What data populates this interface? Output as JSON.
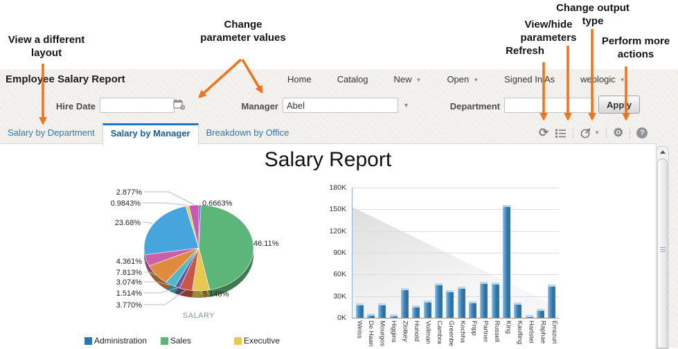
{
  "annotations": {
    "view_layout": "View a different layout",
    "change_params": "Change parameter values",
    "refresh": "Refresh",
    "view_hide_params": "View/hide parameters",
    "change_output": "Change output type",
    "more_actions": "Perform more actions",
    "arrow_color": "#f0741e"
  },
  "header": {
    "title": "Employee Salary Report",
    "menu": [
      {
        "label": "Home",
        "caret": false,
        "static": false
      },
      {
        "label": "Catalog",
        "caret": false,
        "static": false
      },
      {
        "label": "New",
        "caret": true,
        "static": false
      },
      {
        "label": "Open",
        "caret": true,
        "static": false
      },
      {
        "label": "Signed In As",
        "caret": false,
        "static": true
      },
      {
        "label": "weblogic",
        "caret": true,
        "static": false
      }
    ]
  },
  "parameters": {
    "fields": [
      {
        "label": "Hire Date",
        "value": "",
        "icon": "calendar-icon"
      },
      {
        "label": "Manager",
        "value": "Abel",
        "icon": "dropdown-caret"
      },
      {
        "label": "Department",
        "value": "",
        "icon": null
      }
    ],
    "apply_label": "Apply"
  },
  "tabs": [
    {
      "label": "Salary by Department",
      "active": false
    },
    {
      "label": "Salary by Manager",
      "active": true
    },
    {
      "label": "Breakdown by Office",
      "active": false
    }
  ],
  "toolbar": {
    "icons": [
      {
        "name": "refresh-icon"
      },
      {
        "name": "parameters-icon"
      },
      {
        "name": "output-type-icon",
        "caret": true
      },
      {
        "name": "gear-icon"
      },
      {
        "name": "help-icon",
        "glyph": "?"
      }
    ],
    "active_tab_border": "#1878c8"
  },
  "report": {
    "title": "Salary Report"
  },
  "chart_data": [
    {
      "type": "pie",
      "title": "SALARY",
      "slices": [
        {
          "label": "0.6663%",
          "value": 0.6663,
          "color": "#4d7cc1"
        },
        {
          "label": "46.11%",
          "value": 46.11,
          "color": "#5cb579"
        },
        {
          "label": "5.148%",
          "value": 5.148,
          "color": "#e9c753"
        },
        {
          "label": "3.770%",
          "value": 3.77,
          "color": "#cb5547"
        },
        {
          "label": "1.514%",
          "value": 1.514,
          "color": "#6b58a8"
        },
        {
          "label": "3.074%",
          "value": 3.074,
          "color": "#4fb9c9"
        },
        {
          "label": "7.813%",
          "value": 7.813,
          "color": "#e08a3e"
        },
        {
          "label": "4.361%",
          "value": 4.361,
          "color": "#cd5fa9"
        },
        {
          "label": "23.68%",
          "value": 23.68,
          "color": "#47a5dd"
        },
        {
          "label": "0.9843%",
          "value": 0.9843,
          "color": "#ded74f"
        },
        {
          "label": "2.877%",
          "value": 2.877,
          "color": "#c45ab8"
        }
      ],
      "legend": [
        {
          "label": "Administration",
          "color": "#2e75b5"
        },
        {
          "label": "Sales",
          "color": "#5cb579"
        },
        {
          "label": "Executive",
          "color": "#e9c753"
        }
      ],
      "legend_position": "bottom"
    },
    {
      "type": "bar",
      "categories": [
        "Weiss",
        "De Haan",
        "Mourgos",
        "Higgins",
        "Zlotkey",
        "Hunold",
        "Vollman",
        "Cambra",
        "Greenbe",
        "Kochha",
        "Fripp",
        "Partner",
        "Russell",
        "King",
        "Kaufling",
        "Hartstei",
        "Raphae",
        "Errazuri"
      ],
      "values": [
        20,
        6,
        20,
        5,
        41,
        17,
        24,
        48,
        38,
        43,
        23,
        50,
        49,
        156,
        21,
        4,
        12,
        46
      ],
      "unit": "K",
      "ylim": [
        0,
        180
      ],
      "yticks": [
        "0K",
        "30K",
        "60K",
        "90K",
        "120K",
        "150K",
        "180K"
      ],
      "bar_color": "#4a90c4",
      "grid": true
    }
  ]
}
